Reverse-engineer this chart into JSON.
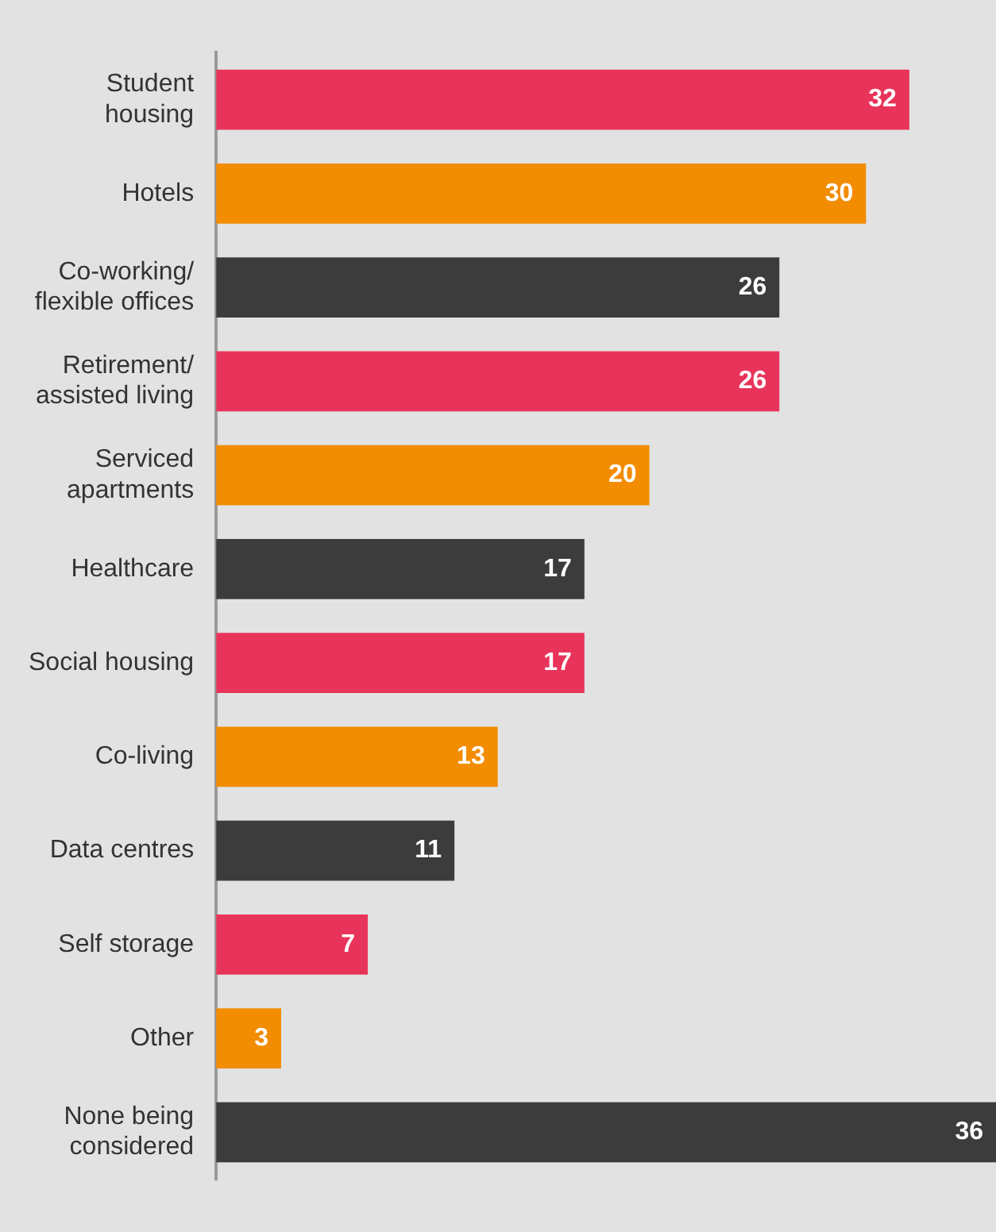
{
  "chart_data": {
    "type": "bar",
    "orientation": "horizontal",
    "data_labels": true,
    "legend": false,
    "categories": [
      "Student\nhousing",
      "Hotels",
      "Co-working/\nflexible offices",
      "Retirement/\nassisted living",
      "Serviced\napartments",
      "Healthcare",
      "Social housing",
      "Co-living",
      "Data centres",
      "Self storage",
      "Other",
      "None being\nconsidered"
    ],
    "values": [
      32,
      30,
      26,
      26,
      20,
      17,
      17,
      13,
      11,
      7,
      3,
      36
    ],
    "colors": [
      "#e8345a",
      "#f28c00",
      "#3c3c3c",
      "#e8345a",
      "#f28c00",
      "#3c3c3c",
      "#e8345a",
      "#f28c00",
      "#3c3c3c",
      "#e8345a",
      "#f28c00",
      "#3c3c3c"
    ]
  }
}
